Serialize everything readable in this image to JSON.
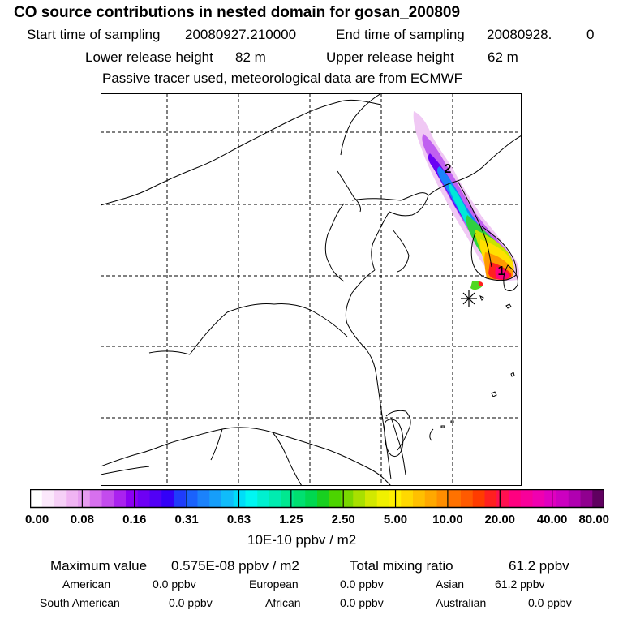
{
  "header": {
    "title": "CO  source contributions in nested domain for gosan_200809",
    "start_label": "Start time of sampling",
    "start_value": "20080927.210000",
    "end_label": "End time of sampling",
    "end_value": "20080928.",
    "end_tail": "0",
    "lower_label": "Lower release height",
    "lower_value": "82 m",
    "upper_label": "Upper release height",
    "upper_value": "62 m",
    "note": "Passive tracer used, meteorological data are from ECMWF"
  },
  "map": {
    "markers": [
      {
        "label": "1"
      },
      {
        "label": "2"
      }
    ],
    "release_site": "gosan"
  },
  "colorbar": {
    "tick_labels": [
      "0.00",
      "0.08",
      "0.16",
      "0.31",
      "0.63",
      "1.25",
      "2.50",
      "5.00",
      "10.00",
      "20.00",
      "40.00",
      "80.00"
    ],
    "unit": "10E-10 ppbv / m2",
    "colors": [
      "#ffffff",
      "#fbe8fb",
      "#f6d0f7",
      "#f0b4f3",
      "#e79cf0",
      "#d770ee",
      "#c34bed",
      "#aa22ef",
      "#8b00f2",
      "#6e00f4",
      "#5200f6",
      "#3300f8",
      "#1f3cfb",
      "#1a62fc",
      "#1b82fb",
      "#169efa",
      "#10bcfa",
      "#00ddf8",
      "#00f6f2",
      "#00f0d0",
      "#00ecb0",
      "#00e890",
      "#00e070",
      "#00d850",
      "#18d020",
      "#4cd400",
      "#7ad800",
      "#a8e000",
      "#d2e800",
      "#f0f000",
      "#fff000",
      "#ffd800",
      "#ffc000",
      "#ffa800",
      "#ff8e00",
      "#ff7200",
      "#ff5a00",
      "#ff3c00",
      "#ff2020",
      "#ff1050",
      "#ff0080",
      "#f8009a",
      "#f000b0",
      "#e000c0",
      "#cc00c0",
      "#b000b0",
      "#90008f",
      "#600060"
    ]
  },
  "stats": {
    "max_label": "Maximum value",
    "max_value": "0.575E-08 ppbv / m2",
    "total_label": "Total mixing ratio",
    "total_value": "61.2 ppbv",
    "regions": [
      {
        "name": "American",
        "value": "0.0 ppbv"
      },
      {
        "name": "European",
        "value": "0.0 ppbv"
      },
      {
        "name": "Asian",
        "value": "61.2 ppbv"
      },
      {
        "name": "South American",
        "value": "0.0 ppbv"
      },
      {
        "name": "African",
        "value": "0.0 ppbv"
      },
      {
        "name": "Australian",
        "value": "0.0 ppbv"
      }
    ]
  }
}
